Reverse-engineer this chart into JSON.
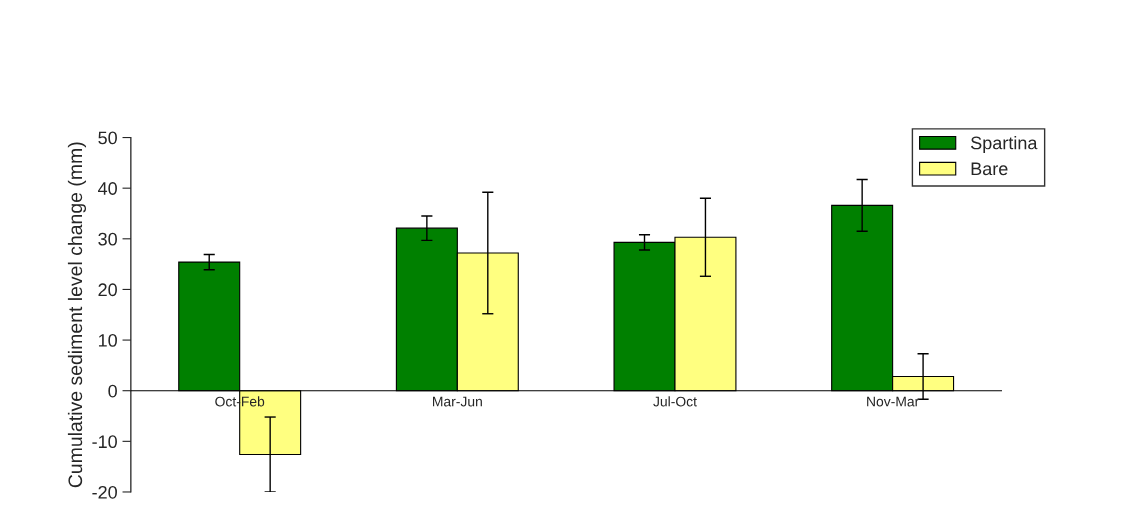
{
  "chart_data": {
    "type": "bar",
    "ylabel": "Cumulative sediment level change (mm)",
    "categories": [
      "Oct-Feb",
      "Mar-Jun",
      "Jul-Oct",
      "Nov-Mar"
    ],
    "series": [
      {
        "name": "Spartina",
        "color": "#008000",
        "values": [
          25.4,
          32.1,
          29.3,
          36.6
        ],
        "errors": [
          1.5,
          2.4,
          1.5,
          5.1
        ]
      },
      {
        "name": "Bare",
        "color": "#ffff80",
        "values": [
          -12.6,
          27.2,
          30.3,
          2.8
        ],
        "errors": [
          7.4,
          12,
          7.7,
          4.5
        ]
      }
    ],
    "ylim": [
      -20,
      50
    ],
    "yticks": [
      -20,
      -10,
      0,
      10,
      20,
      30,
      40,
      50
    ],
    "grid": false,
    "legend": "top right"
  }
}
